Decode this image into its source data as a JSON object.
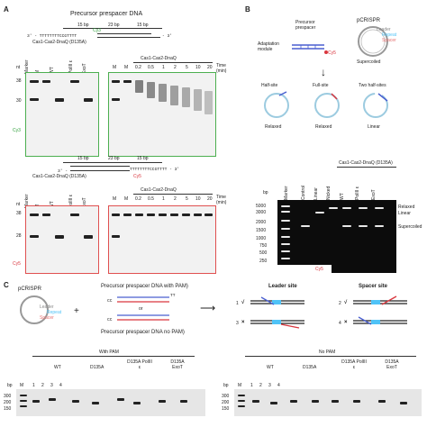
{
  "A": {
    "letter": "A",
    "title": "Precursor prespacer DNA",
    "bp15a": "15 bp",
    "bp23a": "23 bp",
    "bp15b": "15 bp",
    "seq_top_left": "3' - TTTTTTTTCCGTTTT",
    "cy3": "Cy3",
    "seq_top_right": "- 3'",
    "gel1_header": "Cas1-Cas2-DnaQ (D135A)",
    "gel1_lanes": [
      "Marker",
      "M",
      "WT",
      "PolIII ε",
      "ExoT"
    ],
    "gel2_header": "Cas1-Cas2-DnaQ",
    "gel2_lanes": [
      "M",
      "M",
      "0.2",
      "0.5",
      "1",
      "2",
      "5",
      "10",
      "20"
    ],
    "time_label": "Time (min)",
    "nt": "nt",
    "mw_38": "38",
    "mw_30": "30",
    "mw_28": "28",
    "dye_cy3": "Cy3",
    "seq_bottom_left": "3' -",
    "seq_bottom_right": "TTTTTTTTCCGTTTT - 3'",
    "cy5": "Cy5",
    "gel3_header": "Cas1-Cas2-DnaQ (D135A)",
    "gel4_header": "Cas1-Cas2-DnaQ",
    "dye_cy5": "Cy5"
  },
  "B": {
    "letter": "B",
    "precursor": "Precursor prespacer",
    "pcrispr": "pCRISPR",
    "leader": "Leader",
    "repeat": "Repeat",
    "spacer": "Spacer",
    "adaptation": "Adaptation module",
    "cy5": "Cy5",
    "supercoiled_top": "Supercoiled",
    "half_site": "Half-site",
    "full_site": "Full-site",
    "two_half": "Two half-sites",
    "relaxed1": "Relaxed",
    "relaxed2": "Relaxed",
    "linear": "Linear",
    "gel_header": "Cas1-Cas2-DnaQ (D135A)",
    "lanes": [
      "Marker",
      "Control",
      "Linear",
      "Nicked",
      "WT",
      "PolIII ε",
      "ExoT"
    ],
    "bp": "bp",
    "ladder": [
      "5000",
      "3000",
      "2000",
      "1500",
      "1000",
      "750",
      "500",
      "250"
    ],
    "right_labels": [
      "Relaxed",
      "Linear",
      "Supercoiled"
    ],
    "cy5_strip": "Cy5"
  },
  "C": {
    "letter": "C",
    "pcrispr": "pCRISPR",
    "leader": "Leader",
    "repeat": "Repeat",
    "spacer": "Spacer",
    "plus": "+",
    "with_pam_title": "Precursor prespacer DNA with PAM)",
    "or": "or",
    "no_pam_title": "Precursor prespacer DNA no PAM)",
    "cc1": "CC",
    "tt1": "TT",
    "cc2": "CC",
    "leader_site": "Leader site",
    "spacer_site": "Spacer site",
    "n1": "1",
    "n2": "2",
    "n3": "3",
    "n4": "4",
    "check1": "√",
    "check2": "√",
    "x1": "×",
    "x2": "×",
    "with_pam": "With PAM",
    "no_pam": "No PAM",
    "groups_left": [
      "WT",
      "D135A",
      "D135A PolIII ε",
      "D135A ExoT"
    ],
    "groups_right": [
      "WT",
      "D135A",
      "D135A PolIII ε",
      "D135A ExoT"
    ],
    "lane_nums": [
      "1",
      "2",
      "3",
      "4"
    ],
    "bp": "bp",
    "m": "M",
    "ladder_left": [
      "300",
      "200",
      "150"
    ],
    "ladder_right": [
      "300",
      "200",
      "150"
    ]
  }
}
